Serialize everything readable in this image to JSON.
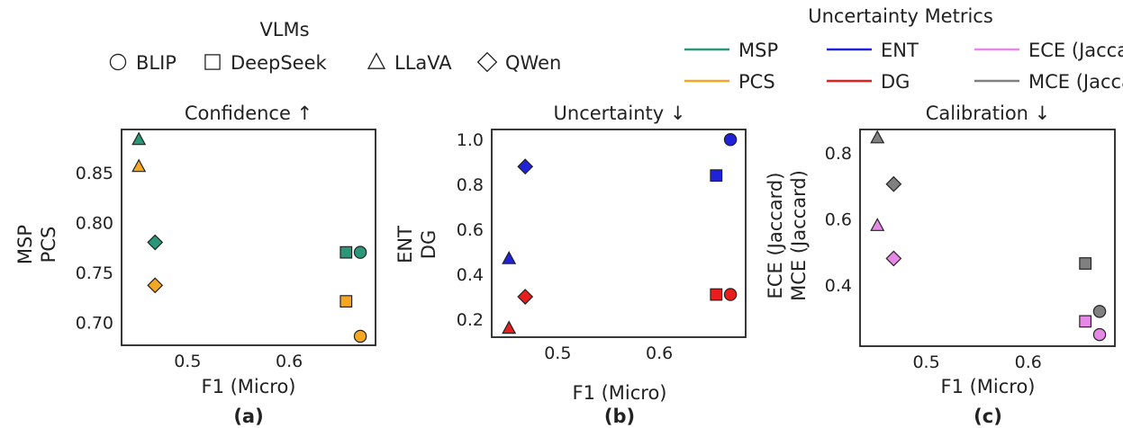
{
  "legend_models": {
    "title": "VLMs",
    "items": [
      {
        "name": "BLIP",
        "marker": "circle"
      },
      {
        "name": "DeepSeek",
        "marker": "square"
      },
      {
        "name": "LLaVA",
        "marker": "triangle"
      },
      {
        "name": "QWen",
        "marker": "diamond"
      }
    ]
  },
  "legend_metrics": {
    "title": "Uncertainty Metrics",
    "items": [
      {
        "name": "MSP",
        "color": "#2a9778"
      },
      {
        "name": "ENT",
        "color": "#1f22d8"
      },
      {
        "name": "ECE (Jaccard)",
        "color": "#e688e6"
      },
      {
        "name": "PCS",
        "color": "#f5a623"
      },
      {
        "name": "DG",
        "color": "#e81d1d"
      },
      {
        "name": "MCE (Jaccard)",
        "color": "#808080"
      }
    ]
  },
  "chart_data": [
    {
      "type": "scatter",
      "title": "Confidence ↑",
      "xlabel": "F1 (Micro)",
      "ylabel": [
        "MSP",
        "PCS"
      ],
      "panel_label": "(a)",
      "xlim": [
        0.435,
        0.685
      ],
      "ylim": [
        0.677,
        0.893
      ],
      "xticks": [
        0.5,
        0.6
      ],
      "yticks": [
        0.7,
        0.75,
        0.8,
        0.85
      ],
      "xtick_labels": [
        "0.5",
        "0.6"
      ],
      "ytick_labels": [
        "0.70",
        "0.75",
        "0.80",
        "0.85"
      ],
      "series": [
        {
          "name": "MSP",
          "color": "#2a9778",
          "points": [
            {
              "model": "LLaVA",
              "marker": "triangle",
              "x": 0.452,
              "y": 0.883
            },
            {
              "model": "QWen",
              "marker": "diamond",
              "x": 0.468,
              "y": 0.78
            },
            {
              "model": "DeepSeek",
              "marker": "square",
              "x": 0.656,
              "y": 0.77
            },
            {
              "model": "BLIP",
              "marker": "circle",
              "x": 0.67,
              "y": 0.77
            }
          ]
        },
        {
          "name": "PCS",
          "color": "#f5a623",
          "points": [
            {
              "model": "LLaVA",
              "marker": "triangle",
              "x": 0.452,
              "y": 0.856
            },
            {
              "model": "QWen",
              "marker": "diamond",
              "x": 0.468,
              "y": 0.737
            },
            {
              "model": "DeepSeek",
              "marker": "square",
              "x": 0.656,
              "y": 0.721
            },
            {
              "model": "BLIP",
              "marker": "circle",
              "x": 0.67,
              "y": 0.686
            }
          ]
        }
      ]
    },
    {
      "type": "scatter",
      "title": "Uncertainty ↓",
      "xlabel": "F1 (Micro)",
      "ylabel": [
        "ENT",
        "DG"
      ],
      "panel_label": "(b)",
      "xlim": [
        0.435,
        0.685
      ],
      "ylim": [
        0.12,
        1.045
      ],
      "xticks": [
        0.5,
        0.6
      ],
      "yticks": [
        0.2,
        0.4,
        0.6,
        0.8,
        1.0
      ],
      "xtick_labels": [
        "0.5",
        "0.6"
      ],
      "ytick_labels": [
        "0.2",
        "0.4",
        "0.6",
        "0.8",
        "1.0"
      ],
      "series": [
        {
          "name": "ENT",
          "color": "#1f22d8",
          "points": [
            {
              "model": "LLaVA",
              "marker": "triangle",
              "x": 0.452,
              "y": 0.47
            },
            {
              "model": "QWen",
              "marker": "diamond",
              "x": 0.468,
              "y": 0.88
            },
            {
              "model": "DeepSeek",
              "marker": "square",
              "x": 0.656,
              "y": 0.84
            },
            {
              "model": "BLIP",
              "marker": "circle",
              "x": 0.67,
              "y": 1.0
            }
          ]
        },
        {
          "name": "DG",
          "color": "#e81d1d",
          "points": [
            {
              "model": "LLaVA",
              "marker": "triangle",
              "x": 0.452,
              "y": 0.16
            },
            {
              "model": "QWen",
              "marker": "diamond",
              "x": 0.468,
              "y": 0.3
            },
            {
              "model": "DeepSeek",
              "marker": "square",
              "x": 0.656,
              "y": 0.31
            },
            {
              "model": "BLIP",
              "marker": "circle",
              "x": 0.67,
              "y": 0.31
            }
          ]
        }
      ]
    },
    {
      "type": "scatter",
      "title": "Calibration ↓",
      "xlabel": "F1 (Micro)",
      "ylabel": [
        "ECE (Jaccard)",
        "MCE (Jaccard)"
      ],
      "panel_label": "(c)",
      "xlim": [
        0.435,
        0.685
      ],
      "ylim": [
        0.215,
        0.87
      ],
      "xticks": [
        0.5,
        0.6
      ],
      "yticks": [
        0.4,
        0.6,
        0.8
      ],
      "xtick_labels": [
        "0.5",
        "0.6"
      ],
      "ytick_labels": [
        "0.4",
        "0.6",
        "0.8"
      ],
      "series": [
        {
          "name": "ECE (Jaccard)",
          "color": "#e688e6",
          "points": [
            {
              "model": "LLaVA",
              "marker": "triangle",
              "x": 0.452,
              "y": 0.58
            },
            {
              "model": "QWen",
              "marker": "diamond",
              "x": 0.468,
              "y": 0.48
            },
            {
              "model": "DeepSeek",
              "marker": "square",
              "x": 0.656,
              "y": 0.29
            },
            {
              "model": "BLIP",
              "marker": "circle",
              "x": 0.67,
              "y": 0.25
            }
          ]
        },
        {
          "name": "MCE (Jaccard)",
          "color": "#808080",
          "points": [
            {
              "model": "LLaVA",
              "marker": "triangle",
              "x": 0.452,
              "y": 0.845
            },
            {
              "model": "QWen",
              "marker": "diamond",
              "x": 0.468,
              "y": 0.705
            },
            {
              "model": "DeepSeek",
              "marker": "square",
              "x": 0.656,
              "y": 0.465
            },
            {
              "model": "BLIP",
              "marker": "circle",
              "x": 0.67,
              "y": 0.32
            }
          ]
        }
      ]
    }
  ]
}
